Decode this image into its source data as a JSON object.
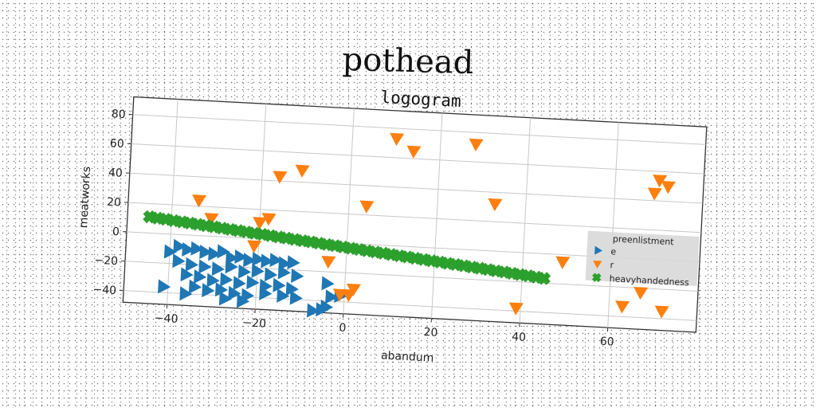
{
  "page": {
    "title": "pothead"
  },
  "chart_data": {
    "type": "scatter",
    "title": "logogram",
    "xlabel": "abandum",
    "ylabel": "meatworks",
    "xlim": [
      -50,
      80
    ],
    "ylim": [
      -48,
      92
    ],
    "xticks": [
      -40,
      -20,
      0,
      20,
      40,
      60
    ],
    "yticks": [
      -40,
      -20,
      0,
      20,
      40,
      60,
      80
    ],
    "grid": true,
    "legend": {
      "title": "preenlistment",
      "placement": "right"
    },
    "series": [
      {
        "name": "e",
        "color": "#1f77b4",
        "marker": "triangle-right",
        "points": [
          [
            -40,
            -12
          ],
          [
            -38,
            -8
          ],
          [
            -36,
            -10
          ],
          [
            -34,
            -9
          ],
          [
            -32,
            -11
          ],
          [
            -30,
            -12
          ],
          [
            -28,
            -10
          ],
          [
            -26,
            -14
          ],
          [
            -24,
            -13
          ],
          [
            -22,
            -15
          ],
          [
            -20,
            -14
          ],
          [
            -18,
            -15
          ],
          [
            -16,
            -14
          ],
          [
            -14,
            -16
          ],
          [
            -12,
            -15
          ],
          [
            -38,
            -18
          ],
          [
            -35,
            -20
          ],
          [
            -32,
            -21
          ],
          [
            -29,
            -22
          ],
          [
            -26,
            -20
          ],
          [
            -23,
            -23
          ],
          [
            -20,
            -22
          ],
          [
            -17,
            -24
          ],
          [
            -14,
            -22
          ],
          [
            -11,
            -24
          ],
          [
            -36,
            -27
          ],
          [
            -33,
            -28
          ],
          [
            -30,
            -30
          ],
          [
            -27,
            -29
          ],
          [
            -24,
            -31
          ],
          [
            -21,
            -30
          ],
          [
            -18,
            -32
          ],
          [
            -15,
            -31
          ],
          [
            -12,
            -33
          ],
          [
            -41,
            -36
          ],
          [
            -34,
            -35
          ],
          [
            -31,
            -37
          ],
          [
            -28,
            -36
          ],
          [
            -25,
            -38
          ],
          [
            -22,
            -39
          ],
          [
            -18,
            -37
          ],
          [
            -14,
            -38
          ],
          [
            -11,
            -39
          ],
          [
            -36,
            -40
          ],
          [
            -27,
            -42
          ],
          [
            -23,
            -43
          ],
          [
            -4,
            -28
          ],
          [
            -3,
            -37
          ],
          [
            -1,
            -36
          ],
          [
            -4,
            -44
          ],
          [
            -5,
            -46
          ],
          [
            -7,
            -47
          ]
        ]
      },
      {
        "name": "r",
        "color": "#ff7f0e",
        "marker": "triangle-down",
        "points": [
          [
            10,
            73
          ],
          [
            14,
            65
          ],
          [
            28,
            72
          ],
          [
            -11,
            48
          ],
          [
            -16,
            43
          ],
          [
            33,
            32
          ],
          [
            4,
            26
          ],
          [
            -34,
            24
          ],
          [
            -31,
            12
          ],
          [
            -20,
            11
          ],
          [
            -18,
            14
          ],
          [
            -21,
            -5
          ],
          [
            -4,
            -13
          ],
          [
            2,
            -31
          ],
          [
            -1,
            -35
          ],
          [
            1,
            -35
          ],
          [
            49,
            -5
          ],
          [
            39,
            -38
          ],
          [
            70,
            54
          ],
          [
            72,
            50
          ],
          [
            69,
            45
          ],
          [
            67,
            -23
          ],
          [
            63,
            -33
          ],
          [
            72,
            -35
          ]
        ]
      },
      {
        "name": "heavyhandedness",
        "color": "#2ca02c",
        "marker": "x",
        "points": [
          [
            -45.0,
            11.0
          ],
          [
            -43.2,
            10.4
          ],
          [
            -41.3,
            9.9
          ],
          [
            -39.5,
            9.3
          ],
          [
            -37.6,
            8.7
          ],
          [
            -35.8,
            8.2
          ],
          [
            -34.0,
            7.6
          ],
          [
            -32.1,
            7.0
          ],
          [
            -30.3,
            6.5
          ],
          [
            -28.5,
            5.9
          ],
          [
            -26.6,
            5.3
          ],
          [
            -24.8,
            4.8
          ],
          [
            -22.9,
            4.2
          ],
          [
            -21.1,
            3.6
          ],
          [
            -19.3,
            3.1
          ],
          [
            -17.4,
            2.5
          ],
          [
            -15.6,
            1.9
          ],
          [
            -13.8,
            1.4
          ],
          [
            -11.9,
            0.8
          ],
          [
            -10.1,
            0.2
          ],
          [
            -8.2,
            -0.3
          ],
          [
            -6.4,
            -0.9
          ],
          [
            -4.6,
            -1.5
          ],
          [
            -2.7,
            -2.0
          ],
          [
            -0.9,
            -2.6
          ],
          [
            0.9,
            -3.2
          ],
          [
            2.8,
            -3.7
          ],
          [
            4.6,
            -4.3
          ],
          [
            6.5,
            -4.9
          ],
          [
            8.3,
            -5.4
          ],
          [
            10.1,
            -6.0
          ],
          [
            12.0,
            -6.6
          ],
          [
            13.8,
            -7.1
          ],
          [
            15.6,
            -7.7
          ],
          [
            17.5,
            -8.3
          ],
          [
            19.3,
            -8.8
          ],
          [
            21.2,
            -9.4
          ],
          [
            23.0,
            -10.0
          ],
          [
            24.8,
            -10.5
          ],
          [
            26.7,
            -11.1
          ],
          [
            28.5,
            -11.7
          ],
          [
            30.3,
            -12.2
          ],
          [
            32.2,
            -12.8
          ],
          [
            34.0,
            -13.4
          ],
          [
            35.9,
            -13.9
          ],
          [
            37.7,
            -14.5
          ],
          [
            39.5,
            -15.1
          ],
          [
            41.4,
            -15.6
          ],
          [
            43.2,
            -16.2
          ],
          [
            45.0,
            -16.8
          ]
        ]
      }
    ]
  }
}
